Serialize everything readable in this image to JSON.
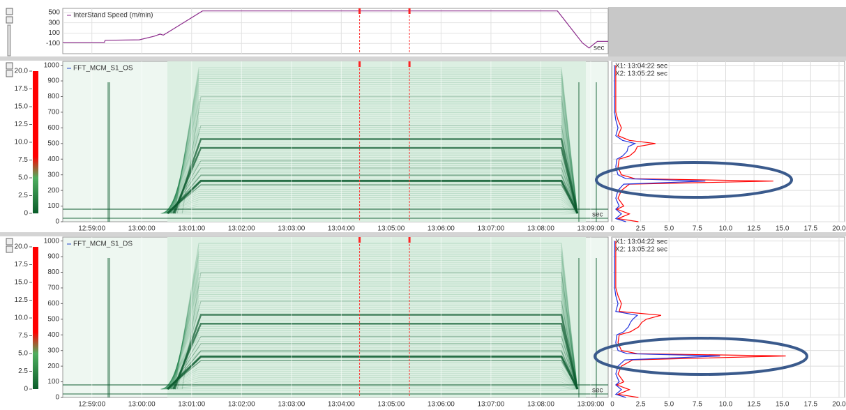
{
  "time_axis": {
    "xlim": [
      "12:58:25",
      "13:09:21"
    ],
    "xticks": [
      "12:59:00",
      "13:00:00",
      "13:01:00",
      "13:02:00",
      "13:03:00",
      "13:04:00",
      "13:05:00",
      "13:06:00",
      "13:07:00",
      "13:08:00",
      "13:09:00"
    ]
  },
  "speed_panel": {
    "legend": "InterStand Speed (m/min)",
    "unit_label": "sec",
    "color": "#8b2a8b",
    "ylim": [
      -300,
      580
    ],
    "yticks": [
      500,
      300,
      100,
      -100
    ],
    "x": [
      "12:58:25",
      "12:59:15",
      "12:59:16",
      "12:59:57",
      "13:00:15",
      "13:00:22",
      "13:00:26",
      "13:00:35",
      "13:01:13",
      "13:08:20",
      "13:08:50",
      "13:08:58",
      "13:09:08",
      "13:09:21"
    ],
    "values": [
      -80,
      -80,
      -40,
      -30,
      40,
      80,
      60,
      150,
      530,
      530,
      -90,
      -190,
      -60,
      -60
    ]
  },
  "spectrograms": [
    {
      "legend": "FFT_MCM_S1_OS",
      "unit_label": "sec",
      "ylim": [
        0,
        1025
      ],
      "yticks": [
        0,
        100,
        200,
        300,
        400,
        500,
        600,
        700,
        800,
        900,
        1000
      ],
      "colorbar_lim": [
        0,
        20
      ],
      "colorbar_ticks": [
        {
          "value": 20,
          "label": "20.0"
        },
        17.5,
        {
          "value": 15,
          "label": "15.0"
        },
        12.5,
        {
          "value": 10,
          "label": "10.0"
        },
        7.5,
        {
          "value": 5,
          "label": "5.0"
        },
        2.5,
        0
      ],
      "cursors": [
        "X1: 13:04:22 sec",
        "X2: 13:05:22 sec"
      ],
      "spectrum": {
        "xlim": [
          0,
          20
        ],
        "xticks": [
          0,
          2.5,
          {
            "value": 5,
            "label": "5.0"
          },
          7.5,
          {
            "value": 10,
            "label": "10.0"
          },
          12.5,
          {
            "value": 15,
            "label": "15.0"
          },
          17.5,
          {
            "value": 20,
            "label": "20.0"
          }
        ],
        "freq": [
          0,
          20,
          50,
          80,
          100,
          150,
          200,
          240,
          260,
          275,
          300,
          350,
          400,
          420,
          450,
          480,
          500,
          520,
          550,
          600,
          650,
          700,
          800,
          900,
          1000
        ],
        "red": [
          2.3,
          0.5,
          1.5,
          0.4,
          1.0,
          0.5,
          0.8,
          1.5,
          14.2,
          2.0,
          0.8,
          0.5,
          0.6,
          1.5,
          2.0,
          2.2,
          3.8,
          1.5,
          0.5,
          0.8,
          0.5,
          0.3,
          0.3,
          0.3,
          0.3
        ],
        "blue": [
          1.2,
          0.3,
          0.8,
          0.3,
          0.6,
          0.3,
          0.5,
          1.0,
          8.2,
          1.2,
          0.5,
          0.3,
          0.4,
          0.9,
          1.3,
          1.4,
          2.0,
          0.9,
          0.3,
          0.5,
          0.3,
          0.2,
          0.2,
          0.2,
          0.2
        ]
      }
    },
    {
      "legend": "FFT_MCM_S1_DS",
      "unit_label": "sec",
      "ylim": [
        0,
        1025
      ],
      "yticks": [
        0,
        100,
        200,
        300,
        400,
        500,
        600,
        700,
        800,
        900,
        1000
      ],
      "colorbar_lim": [
        0,
        20
      ],
      "colorbar_ticks": [
        {
          "value": 20,
          "label": "20.0"
        },
        17.5,
        {
          "value": 15,
          "label": "15.0"
        },
        12.5,
        {
          "value": 10,
          "label": "10.0"
        },
        7.5,
        {
          "value": 5,
          "label": "5.0"
        },
        2.5,
        0
      ],
      "cursors": [
        "X1: 13:04:22 sec",
        "X2: 13:05:22 sec"
      ],
      "spectrum": {
        "xlim": [
          0,
          20
        ],
        "xticks": [
          0,
          2.5,
          {
            "value": 5,
            "label": "5.0"
          },
          7.5,
          {
            "value": 10,
            "label": "10.0"
          },
          12.5,
          {
            "value": 15,
            "label": "15.0"
          },
          17.5,
          {
            "value": 20,
            "label": "20.0"
          }
        ],
        "freq": [
          0,
          20,
          50,
          80,
          100,
          150,
          200,
          240,
          265,
          280,
          300,
          350,
          400,
          420,
          450,
          480,
          500,
          525,
          550,
          600,
          650,
          700,
          800,
          900,
          1000
        ],
        "red": [
          2.3,
          0.5,
          1.5,
          0.4,
          1.0,
          0.5,
          0.8,
          1.8,
          15.3,
          2.2,
          0.8,
          0.5,
          0.6,
          1.6,
          2.3,
          2.6,
          3.0,
          4.3,
          0.6,
          0.8,
          0.5,
          0.3,
          0.3,
          0.3,
          0.3
        ],
        "blue": [
          1.2,
          0.3,
          0.8,
          0.3,
          0.6,
          0.3,
          0.5,
          1.1,
          9.5,
          1.3,
          0.5,
          0.3,
          0.4,
          1.0,
          1.4,
          1.6,
          1.8,
          2.2,
          0.3,
          0.5,
          0.3,
          0.2,
          0.2,
          0.2,
          0.2
        ]
      }
    }
  ]
}
